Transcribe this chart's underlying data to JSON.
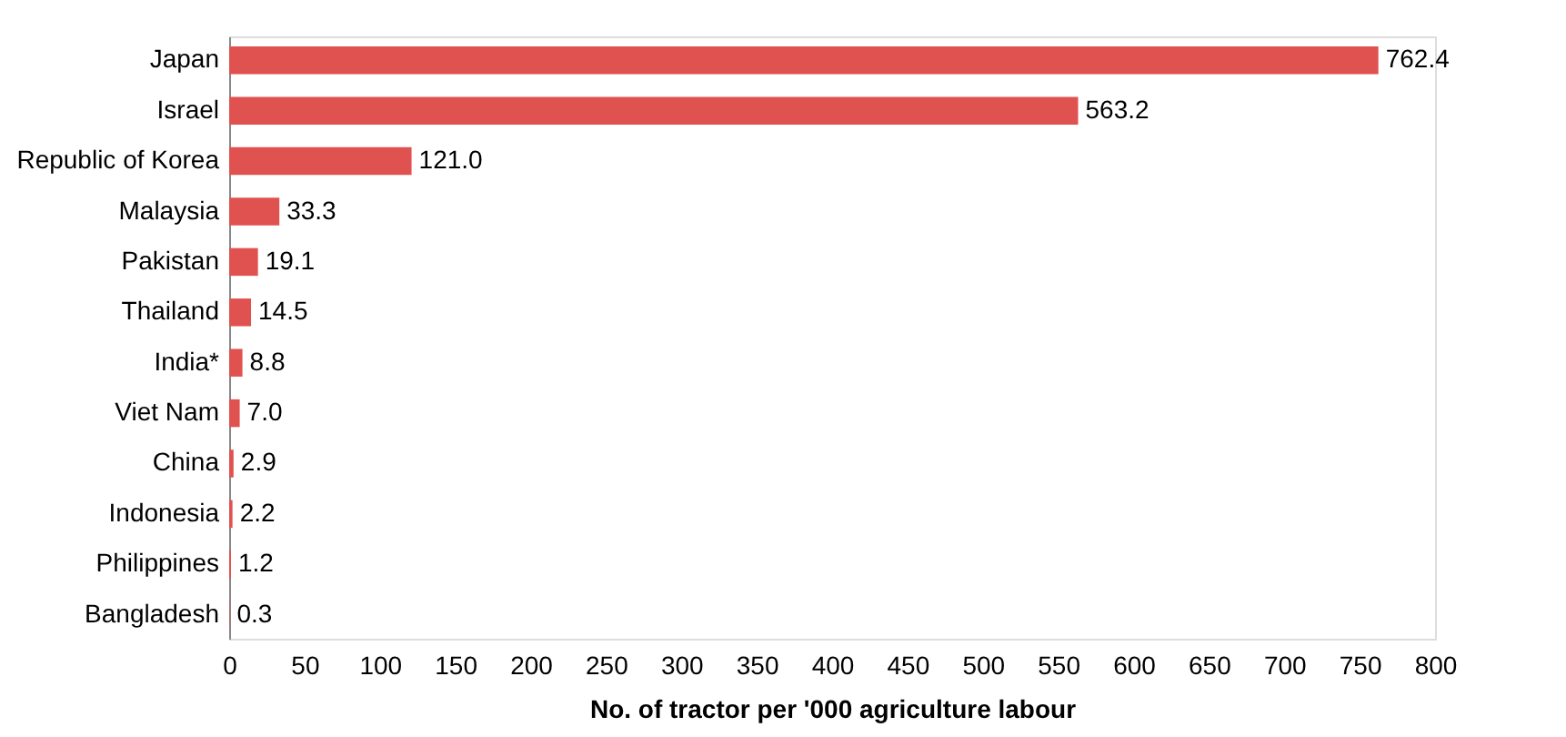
{
  "chart_data": {
    "type": "bar",
    "orientation": "horizontal",
    "xlabel": "No. of tractor per '000 agriculture labour",
    "categories": [
      "Japan",
      "Israel",
      "Republic of Korea",
      "Malaysia",
      "Pakistan",
      "Thailand",
      "India*",
      "Viet Nam",
      "China",
      "Indonesia",
      "Philippines",
      "Bangladesh"
    ],
    "values": [
      762.4,
      563.2,
      121.0,
      33.3,
      19.1,
      14.5,
      8.8,
      7.0,
      2.9,
      2.2,
      1.2,
      0.3
    ],
    "value_labels": [
      "762.4",
      "563.2",
      "121.0",
      "33.3",
      "19.1",
      "14.5",
      "8.8",
      "7.0",
      "2.9",
      "2.2",
      "1.2",
      "0.3"
    ],
    "color": "#e0524f",
    "xlim": [
      0,
      800
    ],
    "xticks": [
      0,
      50,
      100,
      150,
      200,
      250,
      300,
      350,
      400,
      450,
      500,
      550,
      600,
      650,
      700,
      750,
      800
    ],
    "grid": false
  }
}
